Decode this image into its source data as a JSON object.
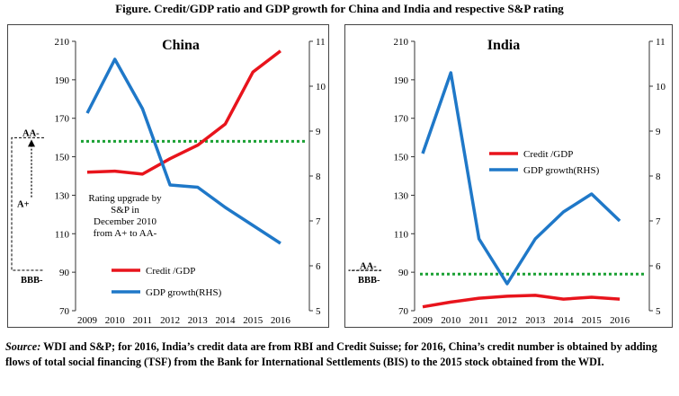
{
  "figure": {
    "title": "Figure. Credit/GDP ratio and GDP growth for China and India and respective S&P rating",
    "source_label": "Source:",
    "source_text": "WDI and S&P; for 2016, India’s credit data are from RBI and Credit Suisse; for 2016, China’s credit number is obtained by adding flows of total social financing (TSF) from the Bank for International Settlements (BIS) to the 2015 stock obtained from the WDI."
  },
  "colors": {
    "credit": "#e8141c",
    "gdp": "#1f78c8",
    "rating_line": "#1aa033",
    "axis": "#333333"
  },
  "chart_data": [
    {
      "type": "line",
      "title": "China",
      "x": [
        2009,
        2010,
        2011,
        2012,
        2013,
        2014,
        2015,
        2016
      ],
      "y_left_lim": [
        70,
        210
      ],
      "y_left_ticks": [
        70,
        90,
        110,
        130,
        150,
        170,
        190,
        210
      ],
      "y_right_lim": [
        5,
        11
      ],
      "y_right_ticks": [
        5,
        6,
        7,
        8,
        9,
        10,
        11
      ],
      "series": [
        {
          "name": "Credit /GDP",
          "axis": "left",
          "values": [
            142,
            142.5,
            141,
            149,
            156,
            167,
            194,
            205
          ]
        },
        {
          "name": "GDP growth(RHS)",
          "axis": "right",
          "values": [
            9.4,
            10.6,
            9.5,
            7.8,
            7.75,
            7.3,
            6.9,
            6.5
          ]
        }
      ],
      "rating_line_value": 158,
      "rating_labels": {
        "upper": "AA-",
        "middle": "A+",
        "lower": "BBB-"
      },
      "annotation": [
        "Rating upgrade by",
        "S&P  in",
        "December 2010",
        "from A+ to AA-"
      ],
      "legend": "bottom-center"
    },
    {
      "type": "line",
      "title": "India",
      "x": [
        2009,
        2010,
        2011,
        2012,
        2013,
        2014,
        2015,
        2016
      ],
      "y_left_lim": [
        70,
        210
      ],
      "y_left_ticks": [
        70,
        90,
        110,
        130,
        150,
        170,
        190,
        210
      ],
      "y_right_lim": [
        5,
        11
      ],
      "y_right_ticks": [
        5,
        6,
        7,
        8,
        9,
        10,
        11
      ],
      "series": [
        {
          "name": "Credit /GDP",
          "axis": "left",
          "values": [
            72,
            74.5,
            76.5,
            77.5,
            78,
            76,
            77,
            76
          ]
        },
        {
          "name": "GDP growth(RHS)",
          "axis": "right",
          "values": [
            8.5,
            10.3,
            6.6,
            5.6,
            6.6,
            7.2,
            7.6,
            7.0
          ]
        }
      ],
      "rating_line_value": 89,
      "rating_labels": {
        "upper": "AA-",
        "lower": "BBB-"
      },
      "legend": "center-right"
    }
  ]
}
